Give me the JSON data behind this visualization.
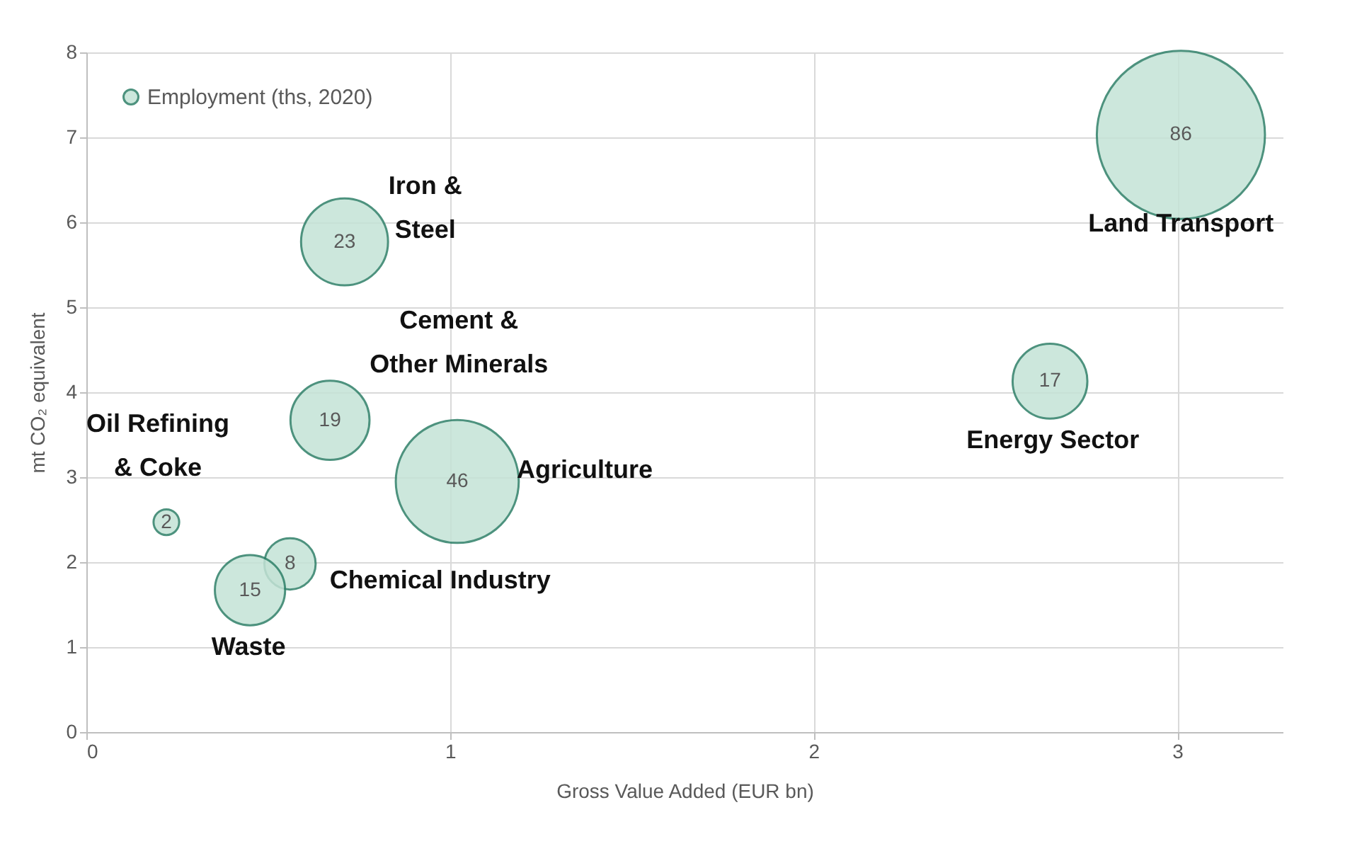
{
  "chart_data": {
    "type": "bubble",
    "xlabel": "Gross Value Added (EUR bn)",
    "ylabel": "mt CO₂ equivalent",
    "xlim": [
      0,
      3.29
    ],
    "ylim": [
      0,
      8
    ],
    "xticks": [
      0,
      1,
      2,
      3
    ],
    "yticks": [
      0,
      1,
      2,
      3,
      4,
      5,
      6,
      7,
      8
    ],
    "grid": true,
    "legend": "top left",
    "series": [
      {
        "name": "Employment (ths, 2020)",
        "color": "#c4e3d6",
        "x": [
          3.01,
          0.71,
          0.67,
          1.02,
          2.65,
          0.22,
          0.56,
          0.45
        ],
        "values": [
          7.03,
          5.77,
          3.67,
          2.95,
          4.13,
          2.47,
          1.98,
          1.67
        ],
        "sizes": [
          86,
          23,
          19,
          46,
          17,
          2,
          8,
          15
        ],
        "value_labels": [
          "86",
          "23",
          "19",
          "46",
          "17",
          "2",
          "8",
          "15"
        ]
      }
    ],
    "annotations": [
      {
        "text": "Land Transport",
        "x": 3.01,
        "y": 7.03
      },
      {
        "text": "Iron &\nSteel",
        "x": 0.71,
        "y": 5.77
      },
      {
        "text": "Cement &\nOther Minerals",
        "x": 0.67,
        "y": 3.67
      },
      {
        "text": "Agriculture",
        "x": 1.02,
        "y": 2.95
      },
      {
        "text": "Energy Sector",
        "x": 2.65,
        "y": 4.13
      },
      {
        "text": "Oil Refining\n& Coke",
        "x": 0.22,
        "y": 2.47
      },
      {
        "text": "Chemical Industry",
        "x": 0.56,
        "y": 1.98
      },
      {
        "text": "Waste",
        "x": 0.45,
        "y": 1.67
      }
    ]
  }
}
